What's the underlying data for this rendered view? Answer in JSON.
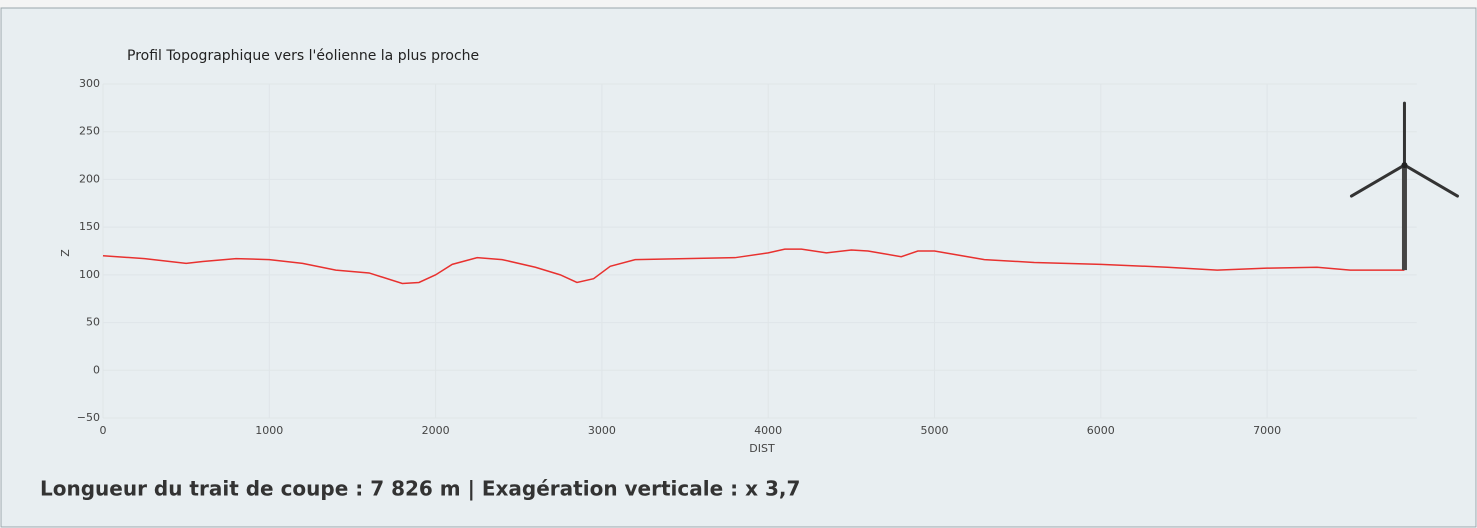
{
  "chart_data": {
    "type": "line",
    "title": "Profil Topographique vers l'éolienne la plus proche",
    "x_label": "DIST",
    "y_label": "Z",
    "x": [
      0,
      250,
      500,
      600,
      800,
      1000,
      1200,
      1400,
      1600,
      1800,
      1900,
      2000,
      2100,
      2250,
      2400,
      2600,
      2750,
      2850,
      2950,
      3050,
      3200,
      3500,
      3800,
      4000,
      4100,
      4200,
      4350,
      4500,
      4600,
      4800,
      4900,
      5000,
      5100,
      5300,
      5600,
      6000,
      6400,
      6700,
      7000,
      7300,
      7500,
      7826
    ],
    "series": [
      {
        "name": "Z",
        "color": "#e8312f",
        "values": [
          120,
          117,
          112,
          114,
          117,
          116,
          112,
          105,
          102,
          91,
          92,
          100,
          111,
          118,
          116,
          108,
          100,
          92,
          96,
          109,
          116,
          117,
          118,
          123,
          127,
          127,
          123,
          126,
          125,
          119,
          125,
          125,
          122,
          116,
          113,
          111,
          108,
          105,
          107,
          108,
          105,
          105
        ]
      }
    ],
    "xlim": [
      0,
      7900
    ],
    "ylim": [
      -50,
      300
    ],
    "xticks": [
      0,
      1000,
      2000,
      3000,
      4000,
      5000,
      6000,
      7000
    ],
    "yticks": [
      {
        "value": -50,
        "label": "−50"
      },
      0,
      50,
      100,
      150,
      200,
      250,
      300
    ],
    "grid": true
  },
  "caption": "Longueur du trait de coupe : 7 826 m  |  Exagération verticale : x 3,7"
}
